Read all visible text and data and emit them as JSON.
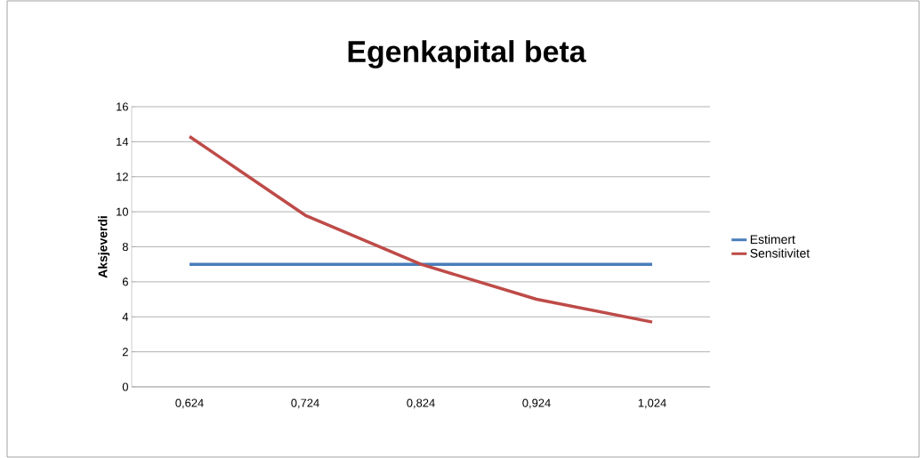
{
  "chart_data": {
    "type": "line",
    "title": "Egenkapital beta",
    "ylabel": "Aksjeverdi",
    "categories": [
      "0,624",
      "0,724",
      "0,824",
      "0,924",
      "1,024"
    ],
    "series": [
      {
        "name": "Estimert",
        "color": "#4a7ebb",
        "values": [
          7,
          7,
          7,
          7,
          7
        ]
      },
      {
        "name": "Sensitivitet",
        "color": "#be4b48",
        "values": [
          14.3,
          9.8,
          7.0,
          5.0,
          3.7
        ]
      }
    ],
    "ylim": [
      0,
      16
    ],
    "yticks": [
      0,
      2,
      4,
      6,
      8,
      10,
      12,
      14,
      16
    ],
    "grid": "y",
    "legend": "right",
    "marker": "none",
    "line_style": "solid"
  }
}
